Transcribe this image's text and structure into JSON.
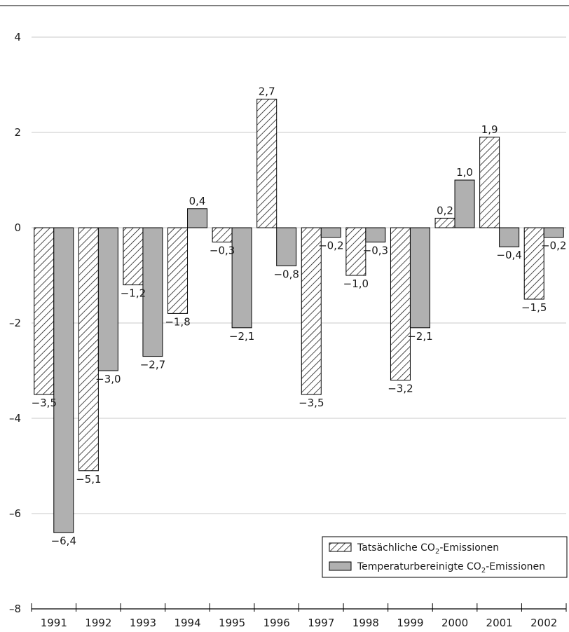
{
  "chart_data": {
    "type": "bar",
    "categories": [
      "1991",
      "1992",
      "1993",
      "1994",
      "1995",
      "1996",
      "1997",
      "1998",
      "1999",
      "2000",
      "2001",
      "2002"
    ],
    "series": [
      {
        "name": "Tatsächliche CO2-Emissionen",
        "fill": "hatch",
        "values": [
          -3.5,
          -5.1,
          -1.2,
          -1.8,
          -0.3,
          2.7,
          -3.5,
          -1.0,
          -3.2,
          0.2,
          1.9,
          -1.5
        ],
        "labels": [
          "−3,5",
          "−5,1",
          "−1,2",
          "−1,8",
          "−0,3",
          "2,7",
          "−3,5",
          "−1,0",
          "−3,2",
          "0,2",
          "1,9",
          "−1,5"
        ]
      },
      {
        "name": "Temperaturbereinigte CO2-Emissionen",
        "fill": "#b0b0b0",
        "values": [
          -6.4,
          -3.0,
          -2.7,
          0.4,
          -2.1,
          -0.8,
          -0.2,
          -0.3,
          -2.1,
          1.0,
          -0.4,
          -0.2
        ],
        "labels": [
          "−6,4",
          "−3,0",
          "−2,7",
          "0,4",
          "−2,1",
          "−0,8",
          "−0,2",
          "−0,3",
          "−2,1",
          "1,0",
          "−0,4",
          "−0,2"
        ]
      }
    ],
    "ylim": [
      -8,
      4
    ],
    "yticks": [
      4,
      2,
      0,
      -2,
      -4,
      -6,
      -8
    ],
    "ytick_labels": [
      "4",
      "2",
      "0",
      "–2",
      "–4",
      "–6",
      "–8"
    ],
    "grid": true,
    "legend": {
      "position": "bottom-right",
      "items": [
        {
          "pre": "Tatsächliche CO",
          "sub": "2",
          "post": "-Emissionen"
        },
        {
          "pre": "Temperaturbereinigte CO",
          "sub": "2",
          "post": "-Emissionen"
        }
      ]
    },
    "colors": {
      "bar_gray": "#b0b0b0",
      "grid": "#c8c8c8",
      "axis": "#000000"
    }
  }
}
